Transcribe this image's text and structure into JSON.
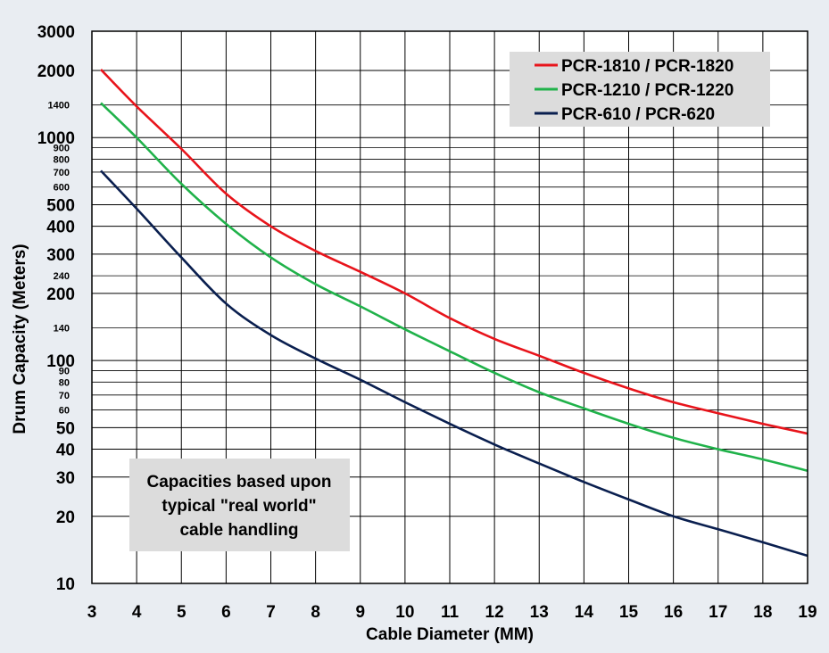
{
  "chart_data": {
    "type": "line",
    "xlabel": "Cable Diameter (MM)",
    "ylabel": "Drum Capacity (Meters)",
    "yscale": "log",
    "xlim": [
      3,
      19
    ],
    "ylim": [
      10,
      3000
    ],
    "grid": true,
    "x_ticks": [
      "3",
      "4",
      "5",
      "6",
      "7",
      "8",
      "9",
      "10",
      "11",
      "12",
      "13",
      "14",
      "15",
      "16",
      "17",
      "18",
      "19"
    ],
    "y_ticks_major": [
      "10",
      "20",
      "30",
      "40",
      "50",
      "100",
      "200",
      "300",
      "400",
      "500",
      "1000",
      "2000",
      "3000"
    ],
    "y_ticks_minor": [
      "60",
      "70",
      "80",
      "90",
      "140",
      "240",
      "600",
      "700",
      "800",
      "900",
      "1400"
    ],
    "series": [
      {
        "name": "PCR-1810 / PCR-1820",
        "color": "#e8141b",
        "x": [
          3.2,
          4,
          5,
          6,
          7,
          8,
          9,
          10,
          11,
          12,
          13,
          14,
          15,
          16,
          17,
          18,
          19
        ],
        "values": [
          2020,
          1380,
          890,
          560,
          400,
          310,
          250,
          200,
          155,
          125,
          105,
          88,
          75,
          65,
          58,
          52,
          47
        ]
      },
      {
        "name": "PCR-1210 / PCR-1220",
        "color": "#20b24a",
        "x": [
          3.2,
          4,
          5,
          6,
          7,
          8,
          9,
          10,
          11,
          12,
          13,
          14,
          15,
          16,
          17,
          18,
          19
        ],
        "values": [
          1430,
          1000,
          620,
          410,
          290,
          220,
          175,
          138,
          110,
          88,
          72,
          61,
          52,
          45,
          40,
          36,
          32
        ]
      },
      {
        "name": "PCR-610 / PCR-620",
        "color": "#0a1f4f",
        "x": [
          3.2,
          4,
          5,
          6,
          7,
          8,
          9,
          10,
          11,
          12,
          13,
          14,
          15,
          16,
          17,
          18,
          19
        ],
        "values": [
          710,
          480,
          290,
          180,
          130,
          102,
          82,
          65,
          52,
          42,
          34.5,
          28.5,
          23.8,
          20,
          17.5,
          15.3,
          13.3
        ]
      }
    ],
    "legend_position": "top-right",
    "annotation": [
      "Capacities based upon",
      "typical \"real world\"",
      "cable handling"
    ]
  }
}
